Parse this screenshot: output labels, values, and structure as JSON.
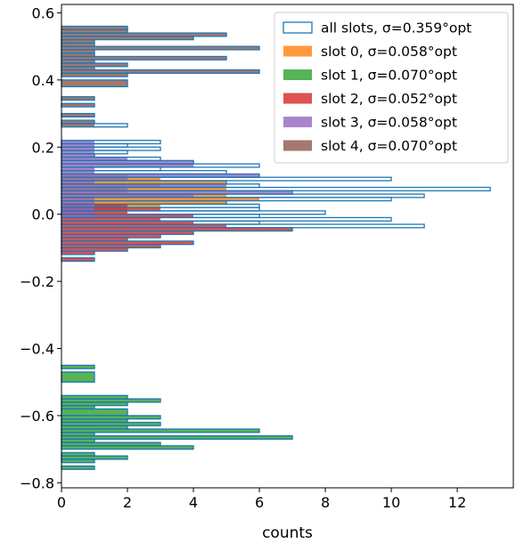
{
  "chart_data": {
    "type": "bar",
    "orientation": "horizontal-histogram",
    "title": "",
    "xlabel": "counts",
    "ylabel": "",
    "xlim": [
      0,
      13.7
    ],
    "ylim": [
      -0.815,
      0.625
    ],
    "xticks": [
      0,
      2,
      4,
      6,
      8,
      10,
      12
    ],
    "yticks": [
      -0.8,
      -0.6,
      -0.4,
      -0.2,
      0.0,
      0.2,
      0.4,
      0.6
    ],
    "ytick_labels": [
      "−0.8",
      "−0.6",
      "−0.4",
      "−0.2",
      "0.0",
      "0.2",
      "0.4",
      "0.6"
    ],
    "grid": false,
    "legend_placement": "top-right",
    "series": [
      {
        "name": "all slots, σ=0.359°opt",
        "style": "step",
        "color": "#1f77b4",
        "bins": [
          [
            -0.8,
            -0.7,
            0
          ],
          [
            -0.76,
            -0.75,
            1
          ],
          [
            -0.75,
            -0.74,
            0
          ],
          [
            -0.74,
            -0.73,
            1
          ],
          [
            -0.73,
            -0.72,
            2
          ],
          [
            -0.72,
            -0.71,
            1
          ],
          [
            -0.71,
            -0.7,
            0
          ],
          [
            -0.7,
            -0.69,
            4
          ],
          [
            -0.69,
            -0.68,
            3
          ],
          [
            -0.68,
            -0.67,
            1
          ],
          [
            -0.67,
            -0.66,
            7
          ],
          [
            -0.66,
            -0.65,
            1
          ],
          [
            -0.65,
            -0.64,
            6
          ],
          [
            -0.64,
            -0.63,
            2
          ],
          [
            -0.63,
            -0.62,
            3
          ],
          [
            -0.62,
            -0.61,
            2
          ],
          [
            -0.61,
            -0.6,
            3
          ],
          [
            -0.6,
            -0.58,
            2
          ],
          [
            -0.58,
            -0.57,
            1
          ],
          [
            -0.57,
            -0.56,
            2
          ],
          [
            -0.56,
            -0.55,
            3
          ],
          [
            -0.55,
            -0.54,
            2
          ],
          [
            -0.5,
            -0.47,
            1
          ],
          [
            -0.46,
            -0.45,
            1
          ],
          [
            -0.14,
            -0.13,
            1
          ],
          [
            -0.12,
            -0.11,
            1
          ],
          [
            -0.11,
            -0.1,
            2
          ],
          [
            -0.1,
            -0.09,
            3
          ],
          [
            -0.09,
            -0.08,
            4
          ],
          [
            -0.08,
            -0.07,
            2
          ],
          [
            -0.07,
            -0.06,
            3
          ],
          [
            -0.06,
            -0.05,
            4
          ],
          [
            -0.05,
            -0.04,
            7
          ],
          [
            -0.04,
            -0.03,
            11
          ],
          [
            -0.03,
            -0.02,
            6
          ],
          [
            -0.02,
            -0.01,
            10
          ],
          [
            -0.01,
            0.0,
            6
          ],
          [
            0.0,
            0.01,
            8
          ],
          [
            0.01,
            0.02,
            6
          ],
          [
            0.02,
            0.03,
            6
          ],
          [
            0.03,
            0.04,
            5
          ],
          [
            0.04,
            0.05,
            10
          ],
          [
            0.05,
            0.06,
            11
          ],
          [
            0.06,
            0.07,
            7
          ],
          [
            0.07,
            0.08,
            13
          ],
          [
            0.08,
            0.09,
            6
          ],
          [
            0.09,
            0.1,
            5
          ],
          [
            0.1,
            0.11,
            10
          ],
          [
            0.11,
            0.12,
            6
          ],
          [
            0.12,
            0.13,
            5
          ],
          [
            0.13,
            0.14,
            3
          ],
          [
            0.14,
            0.15,
            6
          ],
          [
            0.15,
            0.16,
            4
          ],
          [
            0.16,
            0.17,
            3
          ],
          [
            0.17,
            0.18,
            1
          ],
          [
            0.18,
            0.19,
            2
          ],
          [
            0.19,
            0.2,
            3
          ],
          [
            0.2,
            0.21,
            2
          ],
          [
            0.21,
            0.22,
            3
          ],
          [
            0.26,
            0.27,
            2
          ],
          [
            0.27,
            0.28,
            1
          ],
          [
            0.29,
            0.3,
            1
          ],
          [
            0.32,
            0.33,
            1
          ],
          [
            0.34,
            0.35,
            1
          ],
          [
            0.38,
            0.4,
            2
          ],
          [
            0.4,
            0.41,
            0
          ],
          [
            0.41,
            0.42,
            2
          ],
          [
            0.42,
            0.43,
            6
          ],
          [
            0.43,
            0.44,
            1
          ],
          [
            0.44,
            0.45,
            2
          ],
          [
            0.45,
            0.46,
            1
          ],
          [
            0.46,
            0.47,
            5
          ],
          [
            0.47,
            0.48,
            1
          ],
          [
            0.48,
            0.49,
            1
          ],
          [
            0.49,
            0.5,
            6
          ],
          [
            0.5,
            0.51,
            1
          ],
          [
            0.51,
            0.52,
            1
          ],
          [
            0.52,
            0.53,
            4
          ],
          [
            0.53,
            0.54,
            5
          ],
          [
            0.54,
            0.55,
            2
          ],
          [
            0.55,
            0.56,
            2
          ]
        ]
      },
      {
        "name": "slot 0, σ=0.058°opt",
        "style": "filled",
        "color": "#ff7f0e",
        "bins": [
          [
            0.0,
            0.01,
            1
          ],
          [
            0.01,
            0.02,
            2
          ],
          [
            0.02,
            0.03,
            3
          ],
          [
            0.03,
            0.04,
            5
          ],
          [
            0.04,
            0.05,
            6
          ],
          [
            0.05,
            0.06,
            5
          ],
          [
            0.06,
            0.07,
            2
          ],
          [
            0.07,
            0.08,
            5
          ],
          [
            0.08,
            0.09,
            3
          ],
          [
            0.09,
            0.1,
            5
          ],
          [
            0.1,
            0.11,
            3
          ],
          [
            0.11,
            0.12,
            2
          ]
        ]
      },
      {
        "name": "slot 1, σ=0.070°opt",
        "style": "filled",
        "color": "#2ca02c",
        "bins": [
          [
            -0.76,
            -0.75,
            1
          ],
          [
            -0.74,
            -0.73,
            1
          ],
          [
            -0.73,
            -0.72,
            2
          ],
          [
            -0.72,
            -0.71,
            1
          ],
          [
            -0.7,
            -0.69,
            4
          ],
          [
            -0.69,
            -0.68,
            3
          ],
          [
            -0.68,
            -0.67,
            1
          ],
          [
            -0.67,
            -0.66,
            7
          ],
          [
            -0.66,
            -0.65,
            1
          ],
          [
            -0.65,
            -0.64,
            6
          ],
          [
            -0.64,
            -0.63,
            2
          ],
          [
            -0.63,
            -0.62,
            3
          ],
          [
            -0.62,
            -0.61,
            2
          ],
          [
            -0.61,
            -0.6,
            3
          ],
          [
            -0.6,
            -0.58,
            2
          ],
          [
            -0.58,
            -0.57,
            1
          ],
          [
            -0.57,
            -0.56,
            2
          ],
          [
            -0.56,
            -0.55,
            3
          ],
          [
            -0.55,
            -0.54,
            2
          ],
          [
            -0.5,
            -0.47,
            1
          ],
          [
            -0.46,
            -0.45,
            1
          ]
        ]
      },
      {
        "name": "slot 2, σ=0.052°opt",
        "style": "filled",
        "color": "#d62728",
        "bins": [
          [
            -0.14,
            -0.13,
            1
          ],
          [
            -0.12,
            -0.11,
            1
          ],
          [
            -0.11,
            -0.1,
            2
          ],
          [
            -0.1,
            -0.09,
            3
          ],
          [
            -0.09,
            -0.08,
            4
          ],
          [
            -0.08,
            -0.07,
            2
          ],
          [
            -0.07,
            -0.06,
            3
          ],
          [
            -0.06,
            -0.05,
            4
          ],
          [
            -0.05,
            -0.04,
            7
          ],
          [
            -0.04,
            -0.03,
            5
          ],
          [
            -0.03,
            -0.02,
            4
          ],
          [
            -0.02,
            -0.01,
            3
          ],
          [
            -0.01,
            0.0,
            4
          ],
          [
            0.0,
            0.01,
            2
          ],
          [
            0.01,
            0.02,
            3
          ],
          [
            0.02,
            0.03,
            2
          ]
        ]
      },
      {
        "name": "slot 3, σ=0.058°opt",
        "style": "filled",
        "color": "#9467bd",
        "bins": [
          [
            -0.01,
            0.0,
            1
          ],
          [
            0.0,
            0.01,
            1
          ],
          [
            0.01,
            0.02,
            1
          ],
          [
            0.02,
            0.03,
            1
          ],
          [
            0.03,
            0.04,
            1
          ],
          [
            0.04,
            0.05,
            1
          ],
          [
            0.05,
            0.06,
            4
          ],
          [
            0.06,
            0.07,
            7
          ],
          [
            0.07,
            0.08,
            2
          ],
          [
            0.08,
            0.09,
            5
          ],
          [
            0.09,
            0.1,
            1
          ],
          [
            0.1,
            0.11,
            2
          ],
          [
            0.11,
            0.12,
            6
          ],
          [
            0.12,
            0.13,
            1
          ],
          [
            0.13,
            0.14,
            1
          ],
          [
            0.14,
            0.15,
            4
          ],
          [
            0.15,
            0.16,
            4
          ],
          [
            0.16,
            0.17,
            2
          ],
          [
            0.17,
            0.18,
            1
          ],
          [
            0.18,
            0.19,
            1
          ],
          [
            0.19,
            0.2,
            1
          ],
          [
            0.2,
            0.21,
            1
          ],
          [
            0.21,
            0.22,
            1
          ]
        ]
      },
      {
        "name": "slot 4, σ=0.070°opt",
        "style": "filled",
        "color": "#8c564b",
        "bins": [
          [
            0.26,
            0.27,
            1
          ],
          [
            0.27,
            0.28,
            1
          ],
          [
            0.29,
            0.3,
            1
          ],
          [
            0.32,
            0.33,
            1
          ],
          [
            0.34,
            0.35,
            1
          ],
          [
            0.38,
            0.4,
            2
          ],
          [
            0.41,
            0.42,
            2
          ],
          [
            0.42,
            0.43,
            6
          ],
          [
            0.43,
            0.44,
            1
          ],
          [
            0.44,
            0.45,
            2
          ],
          [
            0.45,
            0.46,
            1
          ],
          [
            0.46,
            0.47,
            5
          ],
          [
            0.47,
            0.48,
            1
          ],
          [
            0.48,
            0.49,
            1
          ],
          [
            0.49,
            0.5,
            6
          ],
          [
            0.5,
            0.51,
            1
          ],
          [
            0.51,
            0.52,
            1
          ],
          [
            0.52,
            0.53,
            4
          ],
          [
            0.53,
            0.54,
            5
          ],
          [
            0.54,
            0.55,
            2
          ],
          [
            0.55,
            0.56,
            2
          ]
        ]
      }
    ]
  }
}
